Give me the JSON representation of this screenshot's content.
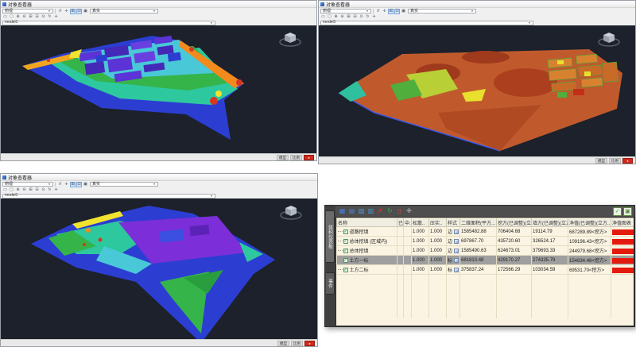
{
  "colors": {
    "bar_red": "#e51a0e",
    "bar_green": "#2ce20e",
    "viewport_bg": "#1c212b",
    "panel_bg": "#4e4e4e",
    "table_bg": "#fbf4e2",
    "selected_row": "#9f9f9f"
  },
  "viewer": {
    "toolbar": {
      "view_value": "俯视",
      "style_value": "真实",
      "model_value": "model1",
      "row1_icons": [
        {
          "name": "orbit-icon",
          "glyph": "↺"
        },
        {
          "name": "pan-icon",
          "glyph": "✛"
        },
        {
          "name": "zoom-window-icon",
          "glyph": "⊞",
          "active": true
        },
        {
          "name": "zoom-extents-icon",
          "glyph": "⊡",
          "active": true
        },
        {
          "name": "visual-style-icon",
          "glyph": "▣"
        }
      ],
      "row2_icons": [
        {
          "name": "select-window-icon",
          "glyph": "▭"
        },
        {
          "name": "region-icon",
          "glyph": "▢"
        },
        {
          "name": "zoom-in-icon",
          "glyph": "⊕"
        },
        {
          "name": "zoom-out-icon",
          "glyph": "⊖"
        },
        {
          "name": "zoom-window2-icon",
          "glyph": "⊞"
        },
        {
          "name": "zoom-previous-icon",
          "glyph": "⊟"
        },
        {
          "name": "zoom-all-icon",
          "glyph": "⊙"
        },
        {
          "name": "orbit-3d-icon",
          "glyph": "↻"
        },
        {
          "name": "add-view-icon",
          "glyph": "✛"
        }
      ]
    },
    "status": {
      "items": [
        "模型",
        "比例"
      ],
      "badge": "●"
    }
  },
  "viewports": [
    {
      "title": "对象查看器"
    },
    {
      "title": "对象查看器"
    },
    {
      "title": "对象查看器"
    }
  ],
  "panorama": {
    "tabs": [
      {
        "label": "体积仪表板"
      },
      {
        "label": "事件"
      }
    ],
    "toolbar_icons": [
      {
        "name": "table-icon",
        "glyph": "▦",
        "color": "#4a7fd8"
      },
      {
        "name": "report-icon",
        "glyph": "▤",
        "color": "#4a7fd8"
      },
      {
        "name": "export-icon",
        "glyph": "▧",
        "color": "#4a9ad8"
      },
      {
        "name": "import-icon",
        "glyph": "▥",
        "color": "#4a9ad8"
      },
      {
        "name": "delete-icon",
        "glyph": "✗",
        "color": "#e03020"
      },
      {
        "name": "refresh-icon",
        "glyph": "↻",
        "color": "#2fae3c"
      },
      {
        "name": "trash-icon",
        "glyph": "▯",
        "color": "#c05050"
      },
      {
        "name": "add-entry-icon",
        "glyph": "✚",
        "color": "#9a9a9a"
      }
    ],
    "right_icons": [
      {
        "name": "apply-check-icon",
        "glyph": "✓",
        "color": "#2fae3c"
      },
      {
        "name": "panel-grid-icon",
        "glyph": "▣",
        "color": "#5a8a3a"
      }
    ],
    "columns": [
      "名称",
      "已",
      "中..",
      "松散..",
      "压实..",
      "样式",
      "二维面积(平方...",
      "挖方(已调整)(立方...",
      "填方(已调整)(立方...",
      "净值(已调整)(立方...",
      "净值图表"
    ],
    "rows": [
      {
        "name": "道路挖填",
        "loose": "1.000",
        "compact": "1.000",
        "style": "边",
        "area": "1585482.88",
        "cut": "706404.68",
        "fill": "19114.79",
        "net": "687289.89<挖方>",
        "cut_pct": 97,
        "selected": false
      },
      {
        "name": "总体挖填 (区域内)",
        "loose": "1.000",
        "compact": "1.000",
        "style": "边",
        "area": "697867.70",
        "cut": "435720.60",
        "fill": "326524.17",
        "net": "109196.43<挖方>",
        "cut_pct": 57,
        "selected": false
      },
      {
        "name": "总体挖填",
        "loose": "1.000",
        "compact": "1.000",
        "style": "边",
        "area": "1585490.63",
        "cut": "624673.01",
        "fill": "379693.33",
        "net": "244979.68<挖方>",
        "cut_pct": 62,
        "selected": false
      },
      {
        "name": "土方一标",
        "loose": "1.000",
        "compact": "1.000",
        "style": "标",
        "area": "681813.48",
        "cut": "429170.27",
        "fill": "274335.79",
        "net": "154834.48<挖方>",
        "cut_pct": 61,
        "selected": true
      },
      {
        "name": "土方二标",
        "loose": "1.000",
        "compact": "1.000",
        "style": "标",
        "area": "375837.24",
        "cut": "172566.29",
        "fill": "103034.59",
        "net": "69531.70<挖方>",
        "cut_pct": 63,
        "selected": false
      }
    ]
  }
}
